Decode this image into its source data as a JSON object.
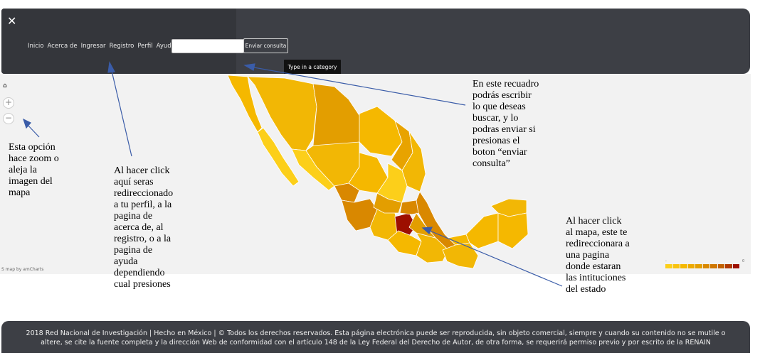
{
  "navbar": {
    "close_icon": "close-icon",
    "links": [
      "Inicio",
      "Acerca de",
      "Ingresar",
      "Registro",
      "Perfil",
      "Ayuda"
    ],
    "search": {
      "value": "",
      "placeholder": ""
    },
    "send_label": "Enviar consulta",
    "tooltip": "Type in a category"
  },
  "map": {
    "credit": "S map by amCharts",
    "controls": [
      "home-icon",
      "zoom-in-icon",
      "zoom-out-icon"
    ],
    "colors": {
      "light": "#fccf1a",
      "mid": "#f2b705",
      "dark": "#d98800",
      "darker": "#c96a00",
      "highlight": "#9d0f00"
    },
    "legend_min": "-",
    "legend_max": "0"
  },
  "annotations": {
    "search_note": [
      "En este recuadro",
      "podrás escribir",
      "lo que deseas",
      "buscar, y lo",
      "podras enviar si",
      "presionas el",
      "boton “enviar",
      "consulta”"
    ],
    "zoom_note": [
      "Esta opción",
      "hace zoom o",
      "aleja la",
      "imagen del",
      "mapa"
    ],
    "nav_note": [
      "Al hacer click",
      "aquí seras",
      "redireccionado",
      "a tu perfil, a la",
      "pagina de",
      "acerca de, al",
      "registro, o a la",
      "pagina de",
      "ayuda",
      "dependiendo",
      "cual presiones"
    ],
    "map_note": [
      "Al hacer click",
      "al mapa, este te",
      "redireccionara a",
      "una pagina",
      "donde estaran",
      "las intituciones",
      "del estado"
    ]
  },
  "footer": {
    "line1": "2018 Red Nacional de Investigación | Hecho en México | © Todos los derechos reservados. Esta página electrónica puede ser reproducida, sin objeto comercial, siempre y cuando su contenido no se mutile o",
    "line2": "altere, se cite la fuente completa y la dirección Web de conformidad con el artículo 148 de la Ley Federal del Derecho de Autor, de otra forma, se requerirá permiso previo y por escrito de la RENAIN"
  }
}
